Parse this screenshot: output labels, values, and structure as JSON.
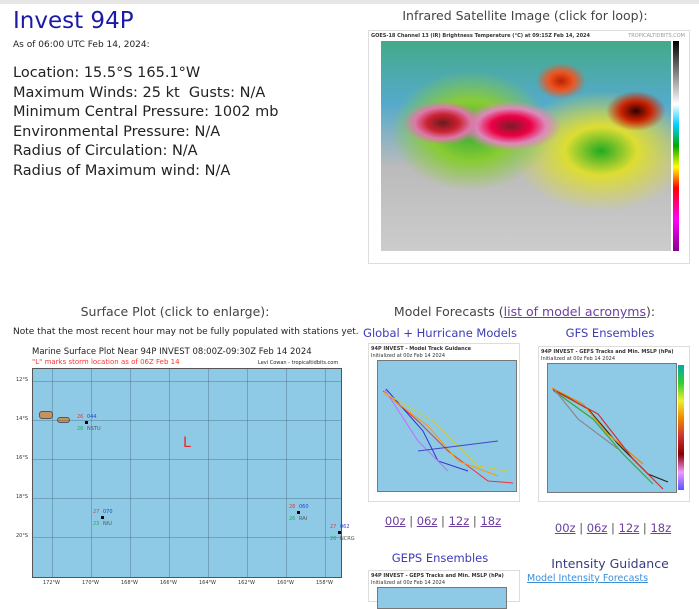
{
  "storm": {
    "title": "Invest 94P",
    "as_of": "As of 06:00 UTC Feb 14, 2024:",
    "location": "Location: 15.5°S 165.1°W",
    "winds": "Maximum Winds: 25 kt  Gusts: N/A",
    "pressure": "Minimum Central Pressure: 1002 mb",
    "env_pressure": "Environmental Pressure: N/A",
    "roci": "Radius of Circulation: N/A",
    "rmw": "Radius of Maximum wind: N/A"
  },
  "satellite": {
    "heading": "Infrared Satellite Image (click for loop):",
    "image_title": "GOES-18 Channel 13 (IR) Brightness Temperature (°C) at 09:15Z Feb 14, 2024",
    "credit": "TROPICALTIDBITS.COM"
  },
  "surface": {
    "heading": "Surface Plot (click to enlarge):",
    "note": "Note that the most recent hour may not be fully populated with stations yet.",
    "plot_title": "Marine Surface Plot Near 94P INVEST 08:00Z-09:30Z Feb 14 2024",
    "plot_subtitle": "\"L\" marks storm location as of 06Z Feb 14",
    "credit": "Levi Cowan - tropicaltidbits.com",
    "storm_marker": "L",
    "lat_labels": [
      "12°S",
      "14°S",
      "16°S",
      "18°S",
      "20°S"
    ],
    "lon_labels": [
      "172°W",
      "170°W",
      "168°W",
      "166°W",
      "164°W",
      "162°W",
      "160°W",
      "158°W"
    ],
    "stations": [
      {
        "id": "NSTU",
        "temp": "26",
        "dew": "26",
        "pres": "044"
      },
      {
        "id": "NIU",
        "temp": "27",
        "dew": "23",
        "pres": "070"
      },
      {
        "id": "RAI",
        "temp": "28",
        "dew": "26",
        "pres": "060"
      },
      {
        "id": "NCRG",
        "temp": "27",
        "dew": "26",
        "pres": "062"
      }
    ]
  },
  "models": {
    "heading_prefix": "Model Forecasts (",
    "heading_link": "list of model acronyms",
    "heading_suffix": "):",
    "global": {
      "title": "Global + Hurricane Models",
      "image_title": "94P INVEST - Model Track Guidance",
      "image_sub": "Initialized at 00z Feb 14 2024"
    },
    "gfs": {
      "title": "GFS Ensembles",
      "image_title": "94P INVEST - GEFS Tracks and Min. MSLP (hPa)",
      "image_sub": "Initialized at 00z Feb 14 2024"
    },
    "geps": {
      "title": "GEPS Ensembles",
      "image_title": "94P INVEST - GEPS Tracks and Min. MSLP (hPa)",
      "image_sub": "Initialized at 00z Feb 14 2024"
    },
    "intensity": {
      "title": "Intensity Guidance",
      "link": "Model Intensity Forecasts"
    },
    "cycles": [
      "00z",
      "06z",
      "12z",
      "18z"
    ]
  }
}
